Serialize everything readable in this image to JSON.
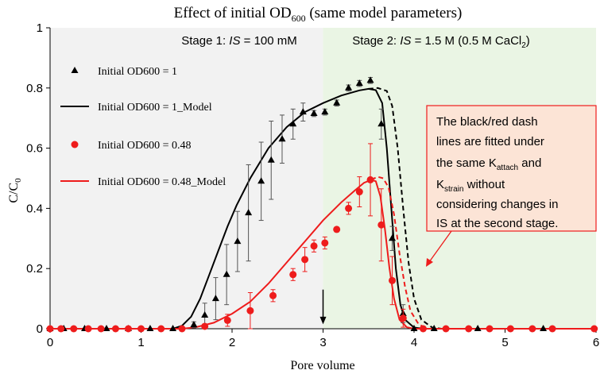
{
  "chart_data": {
    "type": "scatter",
    "title": "Effect of initial OD",
    "title_subscript": "600",
    "title_suffix": " (same model parameters)",
    "xlabel": "Pore volume",
    "ylabel": "C/C",
    "ylabel_subscript": "0",
    "xlim": [
      0,
      6
    ],
    "ylim": [
      0,
      1
    ],
    "x_ticks": [
      "0",
      "1",
      "2",
      "3",
      "4",
      "5",
      "6"
    ],
    "y_ticks": [
      "0",
      "0.2",
      "0.4",
      "0.6",
      "0.8",
      "1"
    ],
    "stages": [
      {
        "label": "Stage 1: ",
        "is_italic": "IS",
        "label_rest": " = 100 mM",
        "x_range": [
          0,
          3
        ],
        "color": "#f2f2f2"
      },
      {
        "label": "Stage 2: ",
        "is_italic": "IS",
        "label_rest": " = 1.5 M (0.5 M CaCl",
        "label_sub": "2",
        "label_end": ")",
        "x_range": [
          3,
          6
        ],
        "color": "#eaf5e4"
      }
    ],
    "arrow_at_x": 3,
    "series": [
      {
        "name": "Initial OD600 = 1",
        "kind": "points",
        "marker": "triangle",
        "color": "#000000",
        "points": [
          {
            "x": 0.0,
            "y": 0.0
          },
          {
            "x": 0.15,
            "y": 0.0
          },
          {
            "x": 0.38,
            "y": 0.0
          },
          {
            "x": 0.62,
            "y": 0.0
          },
          {
            "x": 0.86,
            "y": 0.0
          },
          {
            "x": 1.1,
            "y": 0.0
          },
          {
            "x": 1.35,
            "y": 0.0
          },
          {
            "x": 1.58,
            "y": 0.013,
            "err": 0.01
          },
          {
            "x": 1.7,
            "y": 0.045,
            "err": 0.04
          },
          {
            "x": 1.82,
            "y": 0.1,
            "err": 0.07
          },
          {
            "x": 1.94,
            "y": 0.18,
            "err": 0.1
          },
          {
            "x": 2.06,
            "y": 0.29,
            "err": 0.1
          },
          {
            "x": 2.18,
            "y": 0.385,
            "err": 0.16
          },
          {
            "x": 2.32,
            "y": 0.49,
            "err": 0.13
          },
          {
            "x": 2.43,
            "y": 0.56,
            "err": 0.13
          },
          {
            "x": 2.55,
            "y": 0.63,
            "err": 0.08
          },
          {
            "x": 2.67,
            "y": 0.68,
            "err": 0.05
          },
          {
            "x": 2.78,
            "y": 0.72,
            "err": 0.03
          },
          {
            "x": 2.9,
            "y": 0.715,
            "err": 0.01
          },
          {
            "x": 3.02,
            "y": 0.72,
            "err": 0.01
          },
          {
            "x": 3.15,
            "y": 0.75,
            "err": 0.01
          },
          {
            "x": 3.28,
            "y": 0.8,
            "err": 0.01
          },
          {
            "x": 3.4,
            "y": 0.815,
            "err": 0.01
          },
          {
            "x": 3.52,
            "y": 0.825,
            "err": 0.01
          },
          {
            "x": 3.64,
            "y": 0.68,
            "err": 0.05
          },
          {
            "x": 3.76,
            "y": 0.3,
            "err": 0.04
          },
          {
            "x": 3.88,
            "y": 0.05,
            "err": 0.03
          },
          {
            "x": 4.0,
            "y": 0.0
          },
          {
            "x": 4.22,
            "y": 0.0
          },
          {
            "x": 4.7,
            "y": 0.0
          },
          {
            "x": 5.42,
            "y": 0.0
          }
        ]
      },
      {
        "name": "Initial OD600 = 1_Model",
        "kind": "line",
        "color": "#000000",
        "points": [
          {
            "x": 0.0,
            "y": 0.0
          },
          {
            "x": 1.35,
            "y": 0.0
          },
          {
            "x": 1.45,
            "y": 0.01
          },
          {
            "x": 1.55,
            "y": 0.04
          },
          {
            "x": 1.65,
            "y": 0.1
          },
          {
            "x": 1.75,
            "y": 0.18
          },
          {
            "x": 1.85,
            "y": 0.26
          },
          {
            "x": 1.95,
            "y": 0.34
          },
          {
            "x": 2.05,
            "y": 0.41
          },
          {
            "x": 2.2,
            "y": 0.5
          },
          {
            "x": 2.4,
            "y": 0.6
          },
          {
            "x": 2.6,
            "y": 0.67
          },
          {
            "x": 2.8,
            "y": 0.72
          },
          {
            "x": 3.0,
            "y": 0.75
          },
          {
            "x": 3.2,
            "y": 0.775
          },
          {
            "x": 3.4,
            "y": 0.792
          },
          {
            "x": 3.5,
            "y": 0.797
          },
          {
            "x": 3.58,
            "y": 0.793
          },
          {
            "x": 3.65,
            "y": 0.75
          },
          {
            "x": 3.7,
            "y": 0.6
          },
          {
            "x": 3.75,
            "y": 0.4
          },
          {
            "x": 3.8,
            "y": 0.2
          },
          {
            "x": 3.85,
            "y": 0.08
          },
          {
            "x": 3.9,
            "y": 0.03
          },
          {
            "x": 4.0,
            "y": 0.004
          },
          {
            "x": 4.1,
            "y": 0.0
          },
          {
            "x": 6.0,
            "y": 0.0
          }
        ]
      },
      {
        "name": "Initial OD600 = 1_Model_dash",
        "kind": "dash",
        "color": "#000000",
        "points": [
          {
            "x": 3.5,
            "y": 0.797
          },
          {
            "x": 3.6,
            "y": 0.8
          },
          {
            "x": 3.7,
            "y": 0.79
          },
          {
            "x": 3.76,
            "y": 0.74
          },
          {
            "x": 3.82,
            "y": 0.6
          },
          {
            "x": 3.88,
            "y": 0.4
          },
          {
            "x": 3.94,
            "y": 0.22
          },
          {
            "x": 4.0,
            "y": 0.1
          },
          {
            "x": 4.08,
            "y": 0.03
          },
          {
            "x": 4.2,
            "y": 0.004
          },
          {
            "x": 4.3,
            "y": 0.0
          },
          {
            "x": 6.0,
            "y": 0.0
          }
        ]
      },
      {
        "name": "Initial OD600 = 0.48",
        "kind": "points",
        "marker": "circle",
        "color": "#ee1c1c",
        "points": [
          {
            "x": 0.0,
            "y": 0.0
          },
          {
            "x": 0.12,
            "y": 0.0
          },
          {
            "x": 0.26,
            "y": 0.0
          },
          {
            "x": 0.42,
            "y": 0.0
          },
          {
            "x": 0.56,
            "y": 0.0
          },
          {
            "x": 0.72,
            "y": 0.0
          },
          {
            "x": 0.86,
            "y": 0.0
          },
          {
            "x": 1.0,
            "y": 0.0
          },
          {
            "x": 1.22,
            "y": 0.0
          },
          {
            "x": 1.45,
            "y": 0.0
          },
          {
            "x": 1.7,
            "y": 0.008,
            "err": 0.005
          },
          {
            "x": 1.95,
            "y": 0.028,
            "err": 0.02
          },
          {
            "x": 2.2,
            "y": 0.06,
            "err": 0.06
          },
          {
            "x": 2.45,
            "y": 0.11,
            "err": 0.02
          },
          {
            "x": 2.67,
            "y": 0.18,
            "err": 0.02
          },
          {
            "x": 2.8,
            "y": 0.23,
            "err": 0.04
          },
          {
            "x": 2.9,
            "y": 0.275,
            "err": 0.02
          },
          {
            "x": 3.02,
            "y": 0.285,
            "err": 0.02
          },
          {
            "x": 3.15,
            "y": 0.33
          },
          {
            "x": 3.28,
            "y": 0.4,
            "err": 0.02
          },
          {
            "x": 3.4,
            "y": 0.455,
            "err": 0.05
          },
          {
            "x": 3.52,
            "y": 0.495,
            "err": 0.12
          },
          {
            "x": 3.64,
            "y": 0.345,
            "err": 0.12
          },
          {
            "x": 3.76,
            "y": 0.16,
            "err": 0.08
          },
          {
            "x": 3.88,
            "y": 0.035,
            "err": 0.03
          },
          {
            "x": 4.1,
            "y": 0.0
          },
          {
            "x": 4.35,
            "y": 0.0
          },
          {
            "x": 4.6,
            "y": 0.0
          },
          {
            "x": 4.83,
            "y": 0.0
          },
          {
            "x": 5.06,
            "y": 0.0
          },
          {
            "x": 5.3,
            "y": 0.0
          },
          {
            "x": 5.52,
            "y": 0.0
          },
          {
            "x": 5.98,
            "y": 0.0
          }
        ]
      },
      {
        "name": "Initial OD600 = 0.48_Model",
        "kind": "line",
        "color": "#ee1c1c",
        "points": [
          {
            "x": 0.0,
            "y": 0.0
          },
          {
            "x": 1.45,
            "y": 0.0
          },
          {
            "x": 1.6,
            "y": 0.005
          },
          {
            "x": 1.8,
            "y": 0.02
          },
          {
            "x": 2.0,
            "y": 0.05
          },
          {
            "x": 2.2,
            "y": 0.09
          },
          {
            "x": 2.4,
            "y": 0.15
          },
          {
            "x": 2.6,
            "y": 0.22
          },
          {
            "x": 2.8,
            "y": 0.29
          },
          {
            "x": 3.0,
            "y": 0.36
          },
          {
            "x": 3.2,
            "y": 0.42
          },
          {
            "x": 3.35,
            "y": 0.46
          },
          {
            "x": 3.45,
            "y": 0.485
          },
          {
            "x": 3.53,
            "y": 0.495
          },
          {
            "x": 3.58,
            "y": 0.49
          },
          {
            "x": 3.63,
            "y": 0.44
          },
          {
            "x": 3.68,
            "y": 0.33
          },
          {
            "x": 3.73,
            "y": 0.2
          },
          {
            "x": 3.78,
            "y": 0.1
          },
          {
            "x": 3.84,
            "y": 0.03
          },
          {
            "x": 3.92,
            "y": 0.005
          },
          {
            "x": 4.0,
            "y": 0.0
          },
          {
            "x": 6.0,
            "y": 0.0
          }
        ]
      },
      {
        "name": "Initial OD600 = 0.48_Model_dash",
        "kind": "dash",
        "color": "#ee1c1c",
        "points": [
          {
            "x": 3.53,
            "y": 0.495
          },
          {
            "x": 3.6,
            "y": 0.505
          },
          {
            "x": 3.66,
            "y": 0.5
          },
          {
            "x": 3.72,
            "y": 0.47
          },
          {
            "x": 3.78,
            "y": 0.38
          },
          {
            "x": 3.84,
            "y": 0.25
          },
          {
            "x": 3.9,
            "y": 0.14
          },
          {
            "x": 3.96,
            "y": 0.06
          },
          {
            "x": 4.05,
            "y": 0.015
          },
          {
            "x": 4.15,
            "y": 0.0
          },
          {
            "x": 6.0,
            "y": 0.0
          }
        ]
      }
    ],
    "legend": [
      {
        "label": "Initial OD600 = 1",
        "marker": "triangle",
        "color": "#000000"
      },
      {
        "label": "Initial OD600 = 1_Model",
        "marker": "line",
        "color": "#000000"
      },
      {
        "label": "Initial OD600 = 0.48",
        "marker": "circle",
        "color": "#ee1c1c"
      },
      {
        "label": "Initial OD600 = 0.48_Model",
        "marker": "line",
        "color": "#ee1c1c"
      }
    ],
    "legend_placement": "upper-left",
    "annotation": {
      "lines": [
        "The black/red dash",
        "lines are fitted under",
        "the same K",
        "K",
        "considering changes in",
        "IS at the second stage."
      ],
      "k_attach_sub": "attach",
      "k_strain_sub": "strain",
      "k_strain_after": "  without",
      "k_attach_after": " and",
      "background": "#fce4d6",
      "border": "#ee1c1c"
    },
    "grid": false
  }
}
